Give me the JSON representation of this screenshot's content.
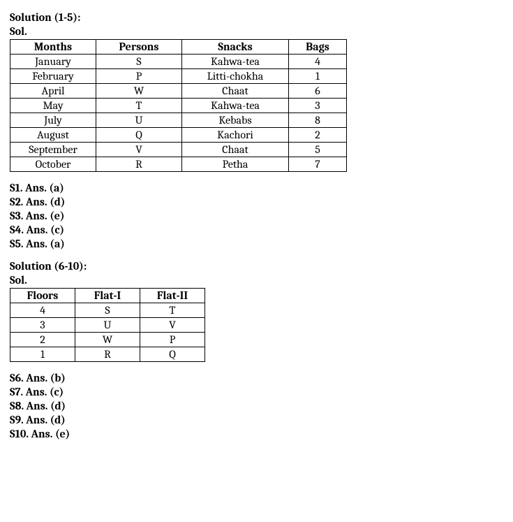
{
  "section1": {
    "header": "Solution (1-5):",
    "sol_label": "Sol.",
    "table": {
      "columns": [
        "Months",
        "Persons",
        "Snacks",
        "Bags"
      ],
      "rows": [
        [
          "January",
          "S",
          "Kahwa-tea",
          "4"
        ],
        [
          "February",
          "P",
          "Litti-chokha",
          "1"
        ],
        [
          "April",
          "W",
          "Chaat",
          "6"
        ],
        [
          "May",
          "T",
          "Kahwa-tea",
          "3"
        ],
        [
          "July",
          "U",
          "Kebabs",
          "8"
        ],
        [
          "August",
          "Q",
          "Kachori",
          "2"
        ],
        [
          "September",
          "V",
          "Chaat",
          "5"
        ],
        [
          "October",
          "R",
          "Petha",
          "7"
        ]
      ]
    },
    "answers": [
      "S1. Ans. (a)",
      "S2. Ans. (d)",
      "S3. Ans. (e)",
      "S4. Ans. (c)",
      "S5. Ans. (a)"
    ]
  },
  "section2": {
    "header": "Solution (6-10):",
    "sol_label": "Sol.",
    "table": {
      "columns": [
        "Floors",
        "Flat-I",
        "Flat-II"
      ],
      "rows": [
        [
          "4",
          "S",
          "T"
        ],
        [
          "3",
          "U",
          "V"
        ],
        [
          "2",
          "W",
          "P"
        ],
        [
          "1",
          "R",
          "Q"
        ]
      ]
    },
    "answers": [
      "S6. Ans. (b)",
      "S7. Ans. (c)",
      "S8. Ans. (d)",
      "S9. Ans. (d)",
      "S10. Ans. (e)"
    ]
  }
}
